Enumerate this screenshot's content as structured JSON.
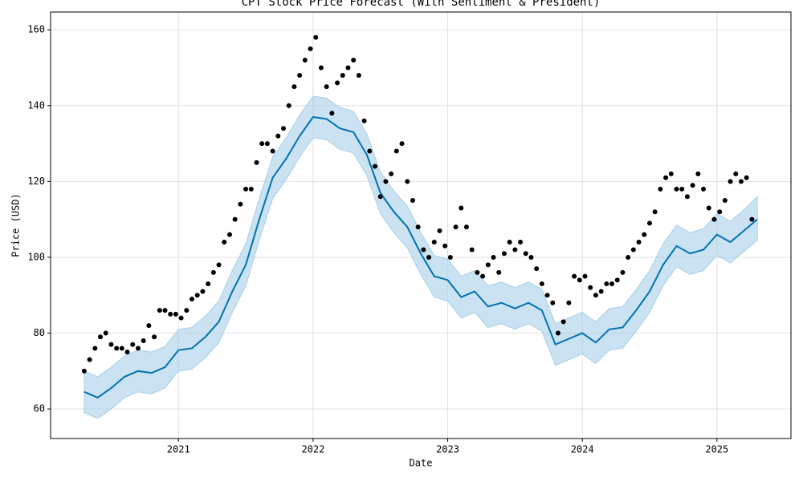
{
  "chart_data": {
    "type": "forecast",
    "title": "CPT Stock Price Forecast (With Sentiment & President)",
    "x_label": "Date",
    "y_label": "Price (USD)",
    "xlim": [
      2020.05,
      2025.55
    ],
    "xticks": [
      2021,
      2022,
      2023,
      2024,
      2025
    ],
    "ylim": [
      52.2,
      164.7
    ],
    "yticks": [
      60,
      80,
      100,
      120,
      140,
      160
    ],
    "grid": true,
    "points": {
      "color": "#000000",
      "x": [
        2020.3,
        2020.34,
        2020.38,
        2020.42,
        2020.46,
        2020.5,
        2020.54,
        2020.58,
        2020.62,
        2020.66,
        2020.7,
        2020.74,
        2020.78,
        2020.82,
        2020.86,
        2020.9,
        2020.94,
        2020.98,
        2021.02,
        2021.06,
        2021.1,
        2021.14,
        2021.18,
        2021.22,
        2021.26,
        2021.3,
        2021.34,
        2021.38,
        2021.42,
        2021.46,
        2021.5,
        2021.54,
        2021.58,
        2021.62,
        2021.66,
        2021.7,
        2021.74,
        2021.78,
        2021.82,
        2021.86,
        2021.9,
        2021.94,
        2021.98,
        2022.02,
        2022.06,
        2022.1,
        2022.14,
        2022.18,
        2022.22,
        2022.26,
        2022.3,
        2022.34,
        2022.38,
        2022.42,
        2022.46,
        2022.5,
        2022.54,
        2022.58,
        2022.62,
        2022.66,
        2022.7,
        2022.74,
        2022.78,
        2022.82,
        2022.86,
        2022.9,
        2022.94,
        2022.98,
        2023.02,
        2023.06,
        2023.1,
        2023.14,
        2023.18,
        2023.22,
        2023.26,
        2023.3,
        2023.34,
        2023.38,
        2023.42,
        2023.46,
        2023.5,
        2023.54,
        2023.58,
        2023.62,
        2023.66,
        2023.7,
        2023.74,
        2023.78,
        2023.82,
        2023.86,
        2023.9,
        2023.94,
        2023.98,
        2024.02,
        2024.06,
        2024.1,
        2024.14,
        2024.18,
        2024.22,
        2024.26,
        2024.3,
        2024.34,
        2024.38,
        2024.42,
        2024.46,
        2024.5,
        2024.54,
        2024.58,
        2024.62,
        2024.66,
        2024.7,
        2024.74,
        2024.78,
        2024.82,
        2024.86,
        2024.9,
        2024.94,
        2024.98,
        2025.02,
        2025.06,
        2025.1,
        2025.14,
        2025.18,
        2025.22,
        2025.26
      ],
      "values": [
        70,
        73,
        76,
        79,
        80,
        77,
        76,
        76,
        75,
        77,
        76,
        78,
        82,
        79,
        86,
        86,
        85,
        85,
        84,
        86,
        89,
        90,
        91,
        93,
        96,
        98,
        104,
        106,
        110,
        114,
        118,
        118,
        125,
        130,
        130,
        128,
        132,
        134,
        140,
        145,
        148,
        152,
        155,
        158,
        150,
        145,
        138,
        146,
        148,
        150,
        152,
        148,
        136,
        128,
        124,
        116,
        120,
        122,
        128,
        130,
        120,
        115,
        108,
        102,
        100,
        104,
        107,
        103,
        100,
        108,
        113,
        108,
        102,
        96,
        95,
        98,
        100,
        96,
        101,
        104,
        102,
        104,
        101,
        100,
        97,
        93,
        90,
        88,
        80,
        83,
        88,
        95,
        94,
        95,
        92,
        90,
        91,
        93,
        93,
        94,
        96,
        100,
        102,
        104,
        106,
        109,
        112,
        118,
        121,
        122,
        118,
        118,
        116,
        119,
        122,
        118,
        113,
        110,
        112,
        115,
        120,
        122,
        120,
        121,
        110
      ]
    },
    "forecast": {
      "color": "#0072b2",
      "band_color": "#a6cfe8",
      "x": [
        2020.3,
        2020.4,
        2020.5,
        2020.6,
        2020.7,
        2020.8,
        2020.9,
        2021.0,
        2021.1,
        2021.2,
        2021.3,
        2021.4,
        2021.5,
        2021.6,
        2021.7,
        2021.8,
        2021.9,
        2022.0,
        2022.1,
        2022.2,
        2022.3,
        2022.4,
        2022.5,
        2022.6,
        2022.7,
        2022.8,
        2022.9,
        2023.0,
        2023.1,
        2023.2,
        2023.3,
        2023.4,
        2023.5,
        2023.6,
        2023.7,
        2023.8,
        2023.9,
        2024.0,
        2024.1,
        2024.2,
        2024.3,
        2024.4,
        2024.5,
        2024.6,
        2024.7,
        2024.8,
        2024.9,
        2025.0,
        2025.1,
        2025.2,
        2025.3
      ],
      "values": [
        64.5,
        63,
        65.5,
        68.5,
        70,
        69.5,
        71,
        75.5,
        76,
        79,
        83,
        91,
        98,
        110,
        121,
        126,
        132,
        137,
        136.5,
        134,
        133,
        127,
        117,
        112,
        108,
        101,
        95,
        94,
        89.5,
        91,
        87,
        88,
        86.5,
        88,
        86,
        77,
        78.5,
        80,
        77.5,
        81,
        81.5,
        86,
        91,
        98,
        103,
        101,
        102,
        106,
        104,
        107,
        110
      ],
      "lower": [
        59,
        57.5,
        60,
        63,
        64.5,
        64,
        65.5,
        70,
        70.5,
        73.5,
        77.5,
        85.5,
        92.5,
        104.5,
        115.5,
        120.5,
        126.5,
        131.5,
        131,
        128.5,
        127.5,
        121.5,
        111.5,
        106.5,
        102.5,
        95.5,
        89.5,
        88.5,
        84,
        85.5,
        81.5,
        82.5,
        81,
        82.5,
        80.5,
        71.5,
        73,
        74.5,
        72,
        75.5,
        76,
        80.5,
        85.5,
        92.5,
        97.5,
        95.5,
        96.5,
        100.5,
        98.5,
        101.5,
        104.5
      ],
      "upper": [
        70,
        68.5,
        71,
        74,
        75.5,
        75,
        76.5,
        81,
        81.5,
        84.5,
        88.5,
        96.5,
        103.5,
        115.5,
        126.5,
        131.5,
        137.5,
        142.5,
        142,
        139.5,
        138.5,
        132.5,
        122.5,
        117.5,
        113.5,
        106.5,
        100.5,
        99.5,
        95,
        96.5,
        92.5,
        93.5,
        92,
        93.5,
        91.5,
        82.5,
        84,
        85.5,
        83,
        86.5,
        87,
        91.5,
        96.5,
        103.5,
        108.5,
        106.5,
        107.5,
        111.5,
        109.5,
        112.5,
        116
      ]
    }
  }
}
